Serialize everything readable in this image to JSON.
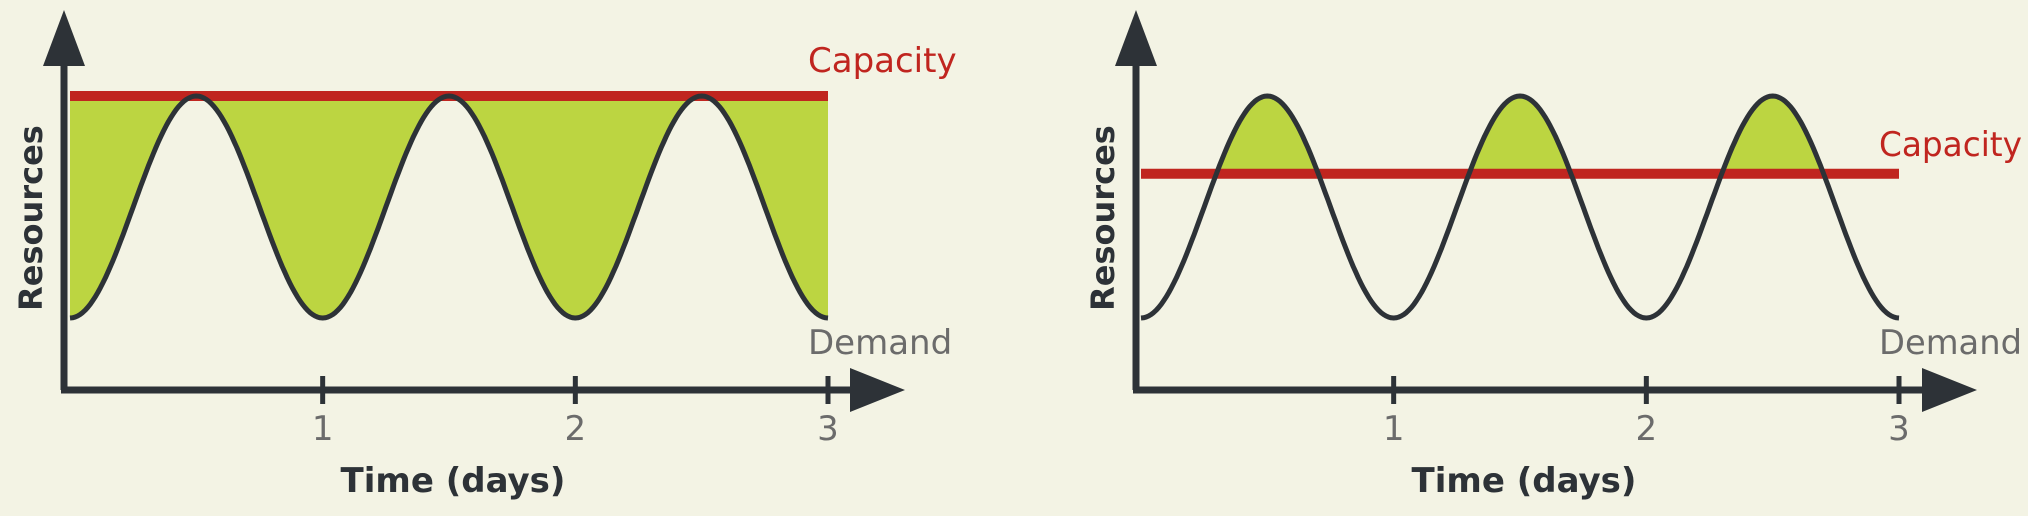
{
  "colors": {
    "background": "#f3f3e4",
    "axis": "#2d3237",
    "capacity": "#c0251f",
    "fill": "#bcd541",
    "demand": "#2d3237",
    "label_gray": "#6b6b6b"
  },
  "chart_data": [
    {
      "type": "area",
      "ylabel": "Resources",
      "xlabel": "Time (days)",
      "xticks": [
        "1",
        "2",
        "3"
      ],
      "xlim": [
        0,
        3
      ],
      "ylim": [
        0,
        1
      ],
      "series": [
        {
          "name": "Capacity",
          "type": "line",
          "x": [
            0,
            3
          ],
          "values": [
            1.0,
            1.0
          ]
        },
        {
          "name": "Demand",
          "type": "line",
          "x": [
            0,
            0.5,
            1,
            1.5,
            2,
            2.5,
            3
          ],
          "values": [
            0,
            1,
            0,
            1,
            0,
            1,
            0
          ]
        }
      ],
      "shaded": "between Capacity and Demand (unused capacity)"
    },
    {
      "type": "area",
      "ylabel": "Resources",
      "xlabel": "Time (days)",
      "xticks": [
        "1",
        "2",
        "3"
      ],
      "xlim": [
        0,
        3
      ],
      "ylim": [
        0,
        1
      ],
      "series": [
        {
          "name": "Capacity",
          "type": "line",
          "x": [
            0,
            3
          ],
          "values": [
            0.65,
            0.65
          ]
        },
        {
          "name": "Demand",
          "type": "line",
          "x": [
            0,
            0.5,
            1,
            1.5,
            2,
            2.5,
            3
          ],
          "values": [
            0,
            1,
            0,
            1,
            0,
            1,
            0
          ]
        }
      ],
      "shaded": "Demand above Capacity (unmet demand)"
    }
  ]
}
